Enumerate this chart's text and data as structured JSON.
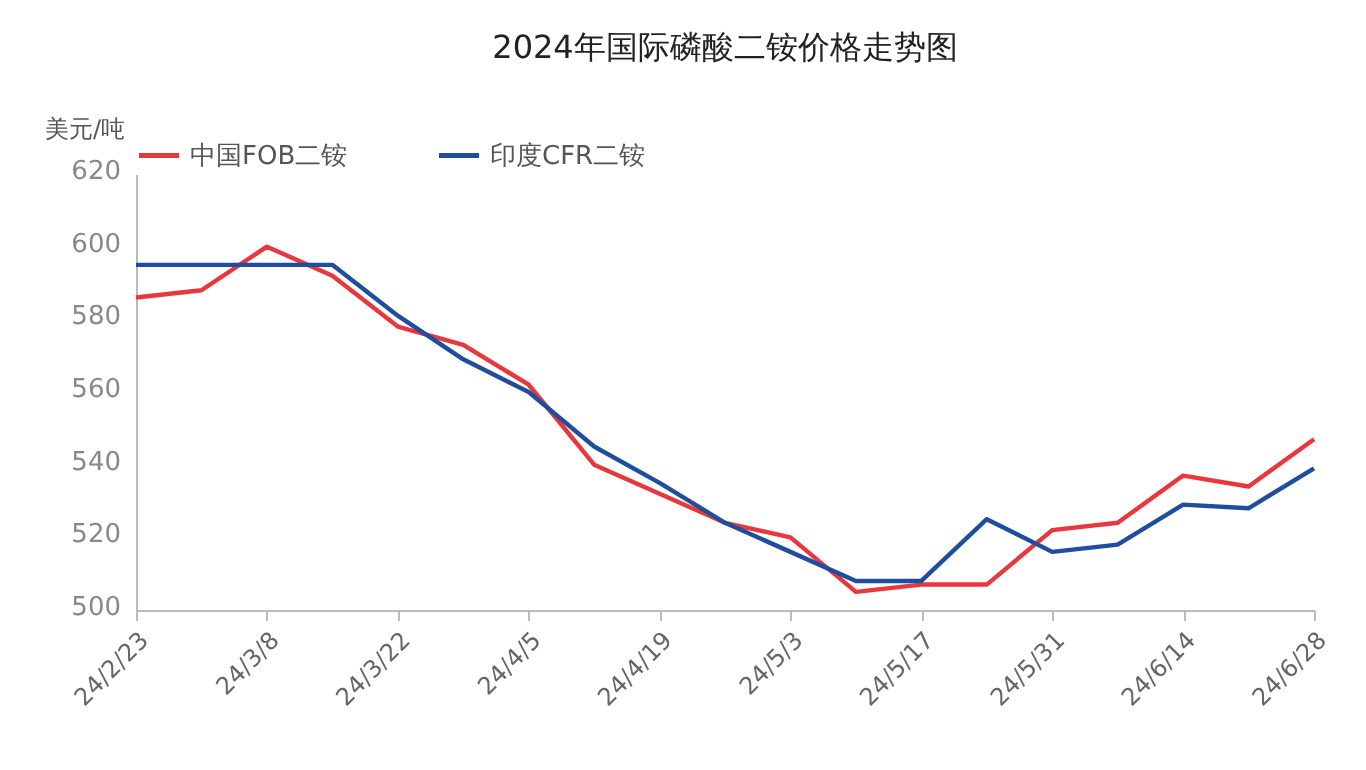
{
  "chart_data": {
    "type": "line",
    "title": "2024年国际磷酸二铵价格走势图",
    "ylabel": "美元/吨",
    "categories": [
      "24/2/23",
      null,
      "24/3/8",
      null,
      "24/3/22",
      null,
      "24/4/5",
      null,
      "24/4/19",
      null,
      "24/5/3",
      null,
      "24/5/17",
      null,
      "24/5/31",
      null,
      "24/6/14",
      null,
      "24/6/28"
    ],
    "series": [
      {
        "name": "中国FOB二铵",
        "color": "#e8383d",
        "values": [
          586,
          588,
          600,
          592,
          578,
          573,
          562,
          540,
          532,
          524,
          520,
          505,
          507,
          507,
          522,
          524,
          537,
          534,
          547
        ]
      },
      {
        "name": "印度CFR二铵",
        "color": "#1f4e9c",
        "values": [
          595,
          595,
          595,
          595,
          581,
          569,
          560,
          545,
          535,
          524,
          516,
          508,
          508,
          525,
          516,
          518,
          529,
          528,
          539
        ]
      }
    ],
    "ylim": [
      500,
      620
    ],
    "yticks": [
      500,
      520,
      540,
      560,
      580,
      600,
      620
    ],
    "grid": false,
    "legend": "top",
    "marker": "none",
    "line_style": "solid"
  }
}
